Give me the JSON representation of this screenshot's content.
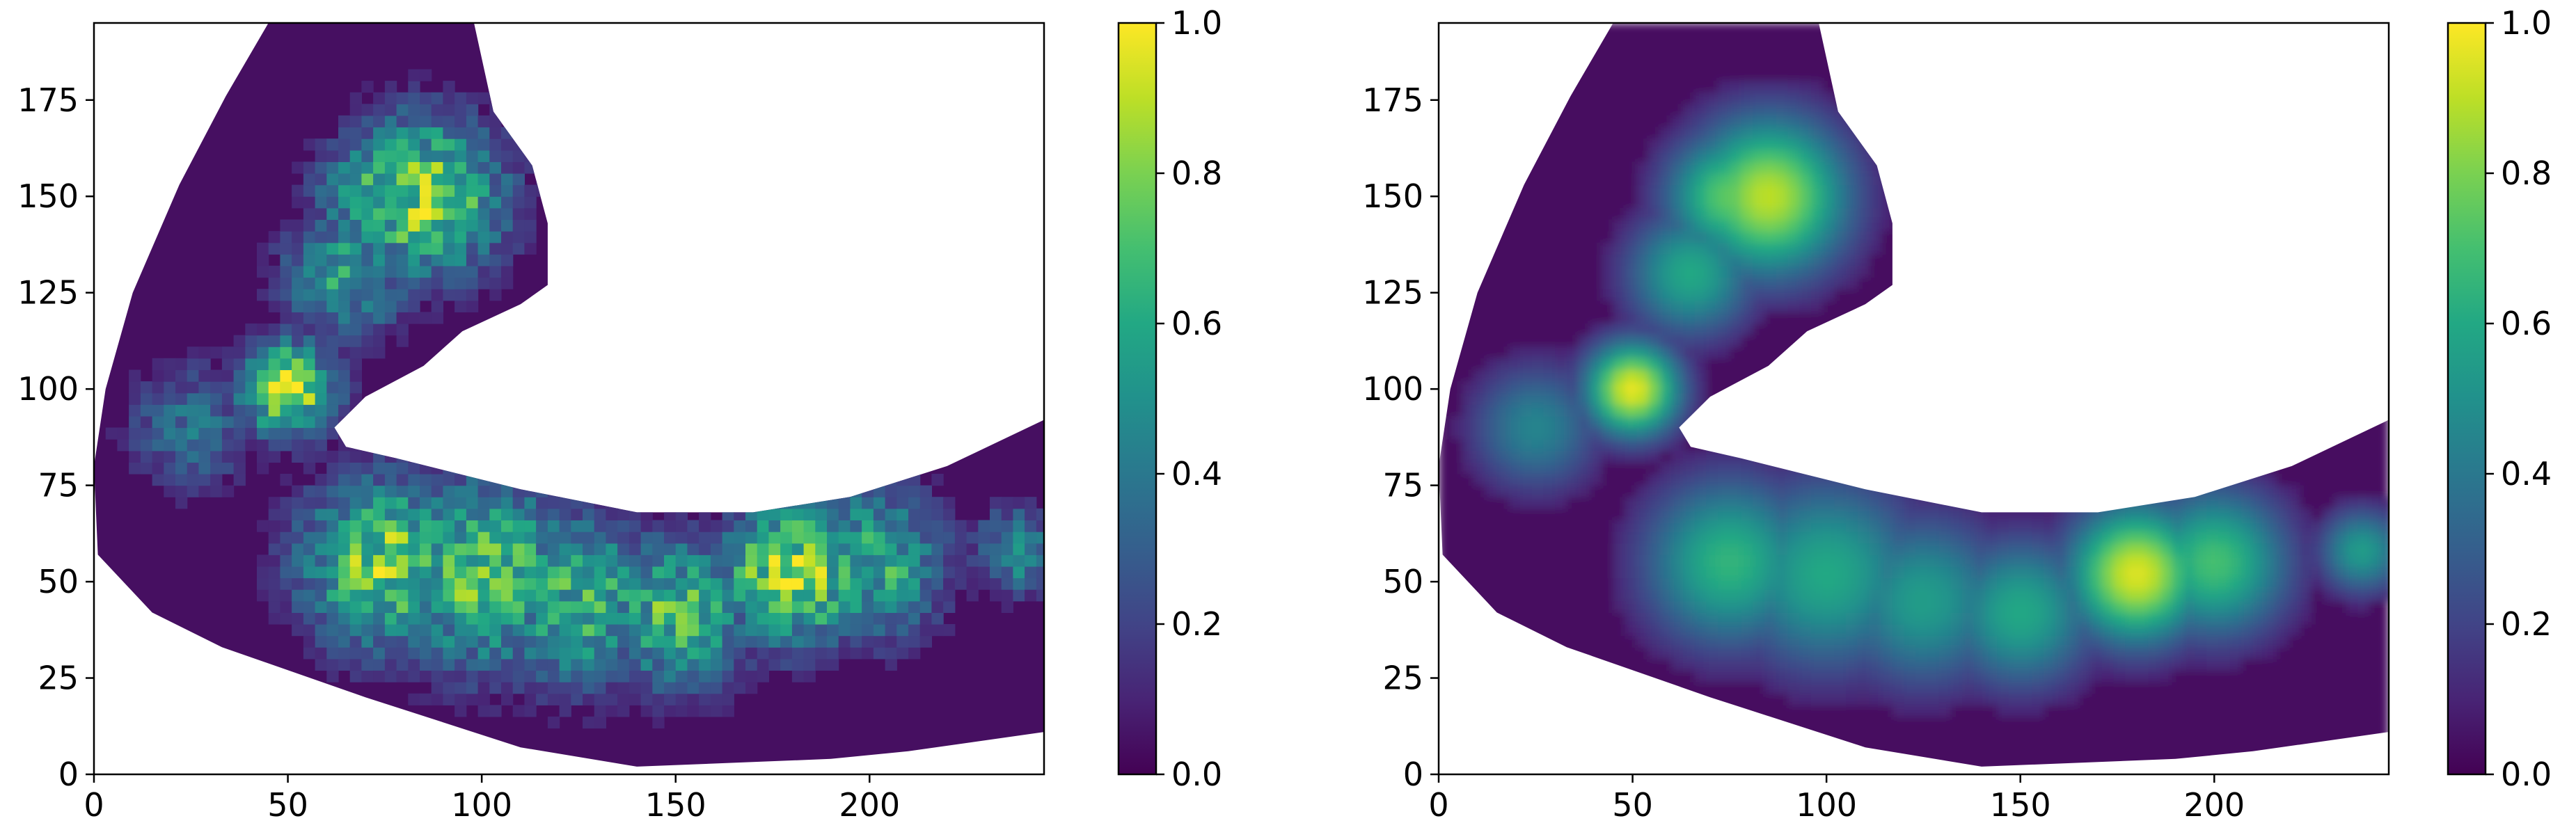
{
  "chart_data": [
    {
      "type": "heatmap",
      "title": "",
      "xlabel": "",
      "ylabel": "",
      "xlim": [
        0,
        245
      ],
      "ylim": [
        0,
        195
      ],
      "x_ticks": [
        "0",
        "50",
        "100",
        "150",
        "200"
      ],
      "y_ticks": [
        "0",
        "25",
        "50",
        "75",
        "100",
        "125",
        "150",
        "175"
      ],
      "colormap": "viridis",
      "colorbar": {
        "range": [
          0.0,
          1.0
        ],
        "ticks": [
          "0.0",
          "0.2",
          "0.4",
          "0.6",
          "0.8",
          "1.0"
        ]
      },
      "texture": "noisy",
      "region_outline": [
        [
          1,
          57
        ],
        [
          15,
          42
        ],
        [
          33,
          33
        ],
        [
          70,
          20
        ],
        [
          110,
          7
        ],
        [
          140,
          2
        ],
        [
          190,
          4
        ],
        [
          210,
          6
        ],
        [
          245,
          11
        ],
        [
          245,
          92
        ],
        [
          220,
          80
        ],
        [
          195,
          72
        ],
        [
          170,
          68
        ],
        [
          140,
          68
        ],
        [
          110,
          74
        ],
        [
          78,
          82
        ],
        [
          65,
          85
        ],
        [
          62,
          90
        ],
        [
          70,
          98
        ],
        [
          85,
          106
        ],
        [
          95,
          115
        ],
        [
          110,
          122
        ],
        [
          117,
          127
        ],
        [
          117,
          143
        ],
        [
          113,
          158
        ],
        [
          103,
          172
        ],
        [
          98,
          195
        ],
        [
          45,
          195
        ],
        [
          34,
          176
        ],
        [
          22,
          153
        ],
        [
          10,
          125
        ],
        [
          3,
          100
        ],
        [
          0,
          80
        ]
      ],
      "hotspots": [
        {
          "x": 50,
          "y": 100,
          "value": 0.97,
          "spread": 9
        },
        {
          "x": 85,
          "y": 150,
          "value": 0.9,
          "spread": 15
        },
        {
          "x": 75,
          "y": 150,
          "value": 0.75,
          "spread": 12
        },
        {
          "x": 65,
          "y": 130,
          "value": 0.6,
          "spread": 12
        },
        {
          "x": 75,
          "y": 55,
          "value": 0.85,
          "spread": 16
        },
        {
          "x": 100,
          "y": 52,
          "value": 0.78,
          "spread": 18
        },
        {
          "x": 125,
          "y": 45,
          "value": 0.7,
          "spread": 16
        },
        {
          "x": 150,
          "y": 42,
          "value": 0.75,
          "spread": 14
        },
        {
          "x": 180,
          "y": 52,
          "value": 0.98,
          "spread": 13
        },
        {
          "x": 200,
          "y": 55,
          "value": 0.7,
          "spread": 14
        },
        {
          "x": 238,
          "y": 58,
          "value": 0.55,
          "spread": 8
        },
        {
          "x": 25,
          "y": 90,
          "value": 0.4,
          "spread": 12
        }
      ]
    },
    {
      "type": "heatmap",
      "title": "",
      "xlabel": "",
      "ylabel": "",
      "xlim": [
        0,
        245
      ],
      "ylim": [
        0,
        195
      ],
      "x_ticks": [
        "0",
        "50",
        "100",
        "150",
        "200"
      ],
      "y_ticks": [
        "0",
        "25",
        "50",
        "75",
        "100",
        "125",
        "150",
        "175"
      ],
      "colormap": "viridis",
      "colorbar": {
        "range": [
          0.0,
          1.0
        ],
        "ticks": [
          "0.0",
          "0.2",
          "0.4",
          "0.6",
          "0.8",
          "1.0"
        ]
      },
      "texture": "smooth",
      "region_outline": [
        [
          1,
          57
        ],
        [
          15,
          42
        ],
        [
          33,
          33
        ],
        [
          70,
          20
        ],
        [
          110,
          7
        ],
        [
          140,
          2
        ],
        [
          190,
          4
        ],
        [
          210,
          6
        ],
        [
          245,
          11
        ],
        [
          245,
          92
        ],
        [
          220,
          80
        ],
        [
          195,
          72
        ],
        [
          170,
          68
        ],
        [
          140,
          68
        ],
        [
          110,
          74
        ],
        [
          78,
          82
        ],
        [
          65,
          85
        ],
        [
          62,
          90
        ],
        [
          70,
          98
        ],
        [
          85,
          106
        ],
        [
          95,
          115
        ],
        [
          110,
          122
        ],
        [
          117,
          127
        ],
        [
          117,
          143
        ],
        [
          113,
          158
        ],
        [
          103,
          172
        ],
        [
          98,
          195
        ],
        [
          45,
          195
        ],
        [
          34,
          176
        ],
        [
          22,
          153
        ],
        [
          10,
          125
        ],
        [
          3,
          100
        ],
        [
          0,
          80
        ]
      ],
      "hotspots": [
        {
          "x": 50,
          "y": 100,
          "value": 0.97,
          "spread": 9
        },
        {
          "x": 85,
          "y": 150,
          "value": 0.9,
          "spread": 15
        },
        {
          "x": 75,
          "y": 150,
          "value": 0.75,
          "spread": 12
        },
        {
          "x": 65,
          "y": 130,
          "value": 0.6,
          "spread": 12
        },
        {
          "x": 75,
          "y": 55,
          "value": 0.65,
          "spread": 16
        },
        {
          "x": 100,
          "y": 52,
          "value": 0.6,
          "spread": 18
        },
        {
          "x": 125,
          "y": 45,
          "value": 0.55,
          "spread": 16
        },
        {
          "x": 150,
          "y": 42,
          "value": 0.6,
          "spread": 14
        },
        {
          "x": 180,
          "y": 52,
          "value": 0.95,
          "spread": 13
        },
        {
          "x": 200,
          "y": 55,
          "value": 0.7,
          "spread": 14
        },
        {
          "x": 238,
          "y": 58,
          "value": 0.55,
          "spread": 8
        },
        {
          "x": 25,
          "y": 90,
          "value": 0.45,
          "spread": 12
        }
      ]
    }
  ]
}
